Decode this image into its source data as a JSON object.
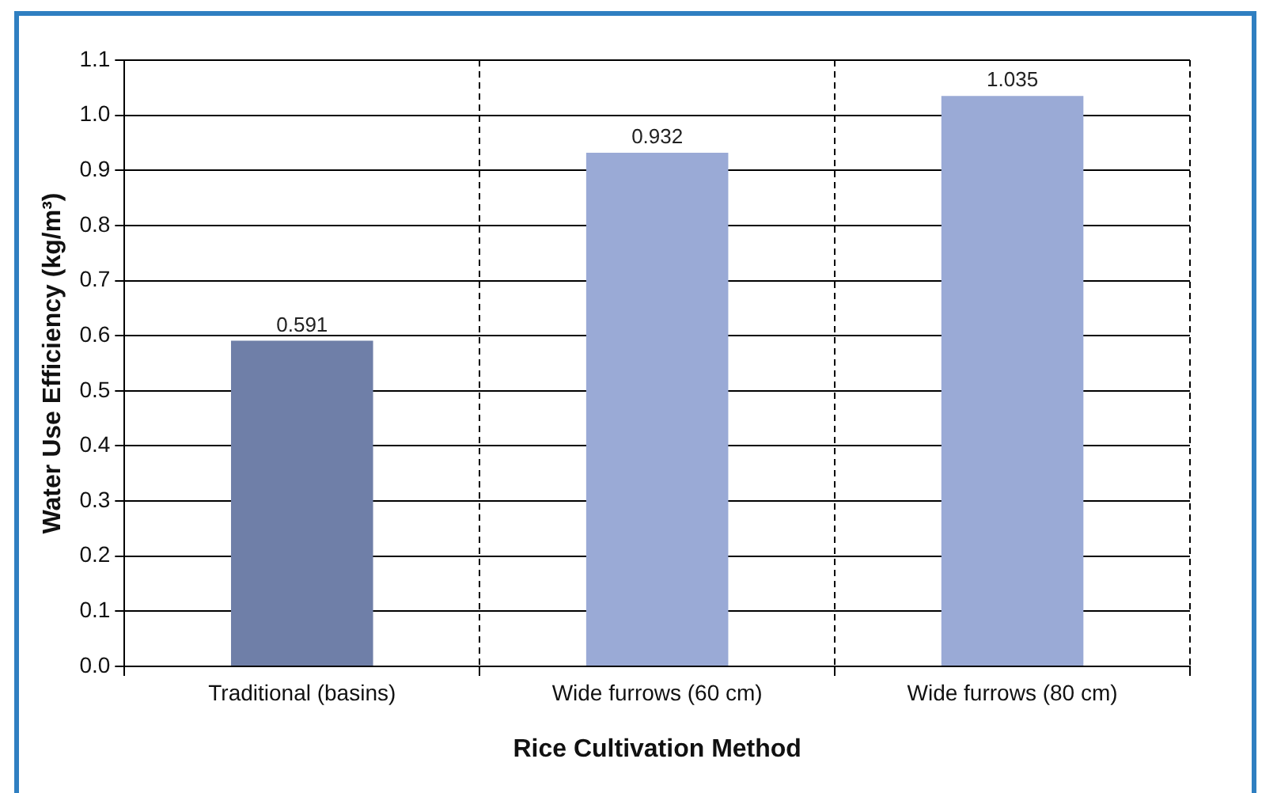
{
  "chart_data": {
    "type": "bar",
    "xlabel": "Rice Cultivation Method",
    "ylabel": "Water Use Efficiency (kg/m³)",
    "categories": [
      "Traditional (basins)",
      "Wide furrows (60 cm)",
      "Wide furrows (80 cm)"
    ],
    "values": [
      0.591,
      0.932,
      1.035
    ],
    "colors": [
      "#6f7fa8",
      "#9aaad6",
      "#9aaad6"
    ],
    "ylim": [
      0,
      1.1
    ],
    "yticks": [
      {
        "value": 0,
        "label": "0.0"
      },
      0.1,
      0.2,
      0.3,
      0.4,
      0.5,
      0.6,
      0.7,
      0.8,
      0.9,
      {
        "value": 1,
        "label": "1.0"
      },
      1.1
    ],
    "grid": true,
    "data_labels": true,
    "legend": false
  }
}
